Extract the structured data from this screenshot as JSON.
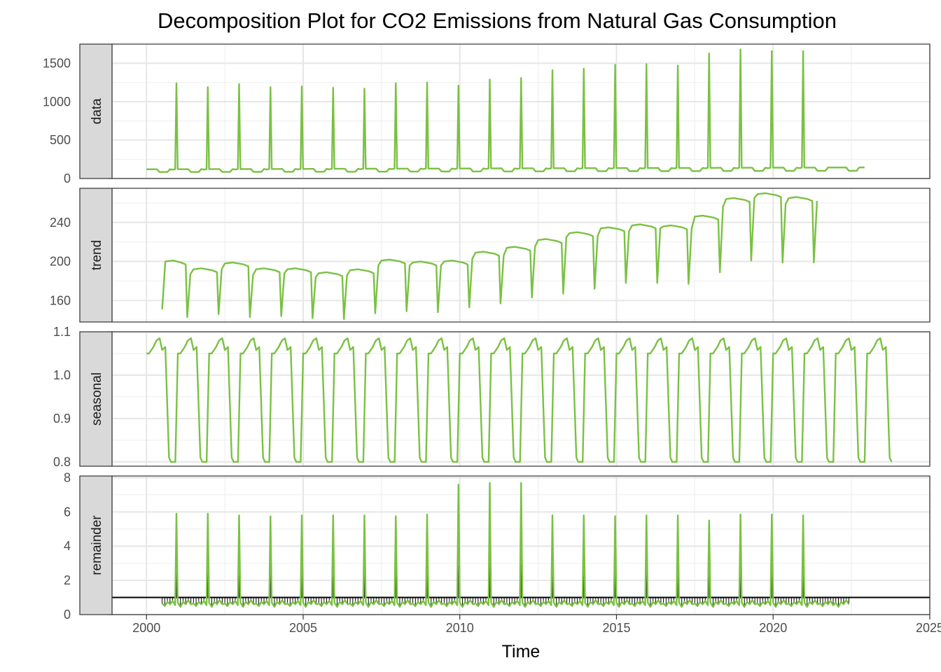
{
  "chart_data": {
    "type": "line",
    "title": "Decomposition Plot for CO2 Emissions from Natural Gas Consumption",
    "xlabel": "Time",
    "xlim": [
      1998.9,
      2025
    ],
    "x_ticks": [
      2000,
      2005,
      2010,
      2015,
      2020,
      2025
    ],
    "x_tick_labels": [
      "2000",
      "2005",
      "2010",
      "2015",
      "2020",
      "2025"
    ],
    "line_color": "#7ac143",
    "panels": [
      {
        "name": "data",
        "ylim": [
          0,
          1750
        ],
        "y_ticks": [
          0,
          500,
          1000,
          1500
        ],
        "y_tick_labels": [
          "0",
          "500",
          "1000",
          "1500"
        ],
        "start": 2000.0,
        "base_start": 120,
        "base_end": 145,
        "dip": 0.7,
        "peaks": [
          1240,
          1190,
          1230,
          1190,
          1200,
          1180,
          1170,
          1240,
          1250,
          1210,
          1290,
          1310,
          1410,
          1430,
          1480,
          1490,
          1470,
          1630,
          1680,
          1660,
          1660
        ]
      },
      {
        "name": "trend",
        "ylim": [
          138,
          275
        ],
        "y_ticks": [
          160,
          200,
          240
        ],
        "y_tick_labels": [
          "160",
          "200",
          "240"
        ],
        "start": 2000.5,
        "segments": [
          {
            "x0": 2000.5,
            "v0": 151,
            "level": 200,
            "end": 2001.3,
            "low": 143
          },
          {
            "x0": 2001.4,
            "v0": 187,
            "level": 192,
            "end": 2002.3,
            "low": 146
          },
          {
            "x0": 2002.4,
            "v0": 192,
            "level": 198,
            "end": 2003.3,
            "low": 143
          },
          {
            "x0": 2003.4,
            "v0": 186,
            "level": 192,
            "end": 2004.3,
            "low": 144
          },
          {
            "x0": 2004.4,
            "v0": 188,
            "level": 192,
            "end": 2005.3,
            "low": 142
          },
          {
            "x0": 2005.4,
            "v0": 184,
            "level": 188,
            "end": 2006.3,
            "low": 141
          },
          {
            "x0": 2006.4,
            "v0": 186,
            "level": 191,
            "end": 2007.3,
            "low": 147
          },
          {
            "x0": 2007.4,
            "v0": 196,
            "level": 201,
            "end": 2008.3,
            "low": 149
          },
          {
            "x0": 2008.4,
            "v0": 196,
            "level": 199,
            "end": 2009.3,
            "low": 148
          },
          {
            "x0": 2009.4,
            "v0": 196,
            "level": 200,
            "end": 2010.3,
            "low": 153
          },
          {
            "x0": 2010.4,
            "v0": 203,
            "level": 209,
            "end": 2011.3,
            "low": 157
          },
          {
            "x0": 2011.4,
            "v0": 206,
            "level": 214,
            "end": 2012.3,
            "low": 163
          },
          {
            "x0": 2012.4,
            "v0": 215,
            "level": 222,
            "end": 2013.3,
            "low": 167
          },
          {
            "x0": 2013.4,
            "v0": 225,
            "level": 229,
            "end": 2014.3,
            "low": 172
          },
          {
            "x0": 2014.4,
            "v0": 226,
            "level": 234,
            "end": 2015.3,
            "low": 178
          },
          {
            "x0": 2015.4,
            "v0": 231,
            "level": 237,
            "end": 2016.3,
            "low": 178
          },
          {
            "x0": 2016.4,
            "v0": 234,
            "level": 236,
            "end": 2017.3,
            "low": 177
          },
          {
            "x0": 2017.4,
            "v0": 234,
            "level": 246,
            "end": 2018.3,
            "low": 189
          },
          {
            "x0": 2018.4,
            "v0": 256,
            "level": 264,
            "end": 2019.3,
            "low": 201
          },
          {
            "x0": 2019.4,
            "v0": 265,
            "level": 269,
            "end": 2020.3,
            "low": 199
          },
          {
            "x0": 2020.4,
            "v0": 259,
            "level": 265,
            "end": 2021.3,
            "low": 199
          },
          {
            "x0": 2021.4,
            "v0": 262,
            "level": 262,
            "end": 2021.4,
            "low": 262
          }
        ]
      },
      {
        "name": "seasonal",
        "ylim": [
          0.79,
          1.1
        ],
        "y_ticks": [
          0.8,
          0.9,
          1.0,
          1.1
        ],
        "y_tick_labels": [
          "0.8",
          "0.9",
          "1.0",
          "1.1"
        ],
        "start": 2000.0,
        "cycle": [
          1.05,
          1.05,
          1.065,
          1.08,
          1.085,
          1.058,
          1.065,
          0.81,
          0.8,
          0.8
        ]
      },
      {
        "name": "remainder",
        "ylim": [
          0,
          8.1
        ],
        "y_ticks": [
          0,
          2,
          4,
          6,
          8
        ],
        "y_tick_labels": [
          "0",
          "2",
          "4",
          "6",
          "8"
        ],
        "baseline": 1.0,
        "start": 2000.5,
        "peaks": [
          5.9,
          5.9,
          5.8,
          5.75,
          5.8,
          5.8,
          5.8,
          5.75,
          5.85,
          7.6,
          7.7,
          7.7,
          5.8,
          5.8,
          5.75,
          5.8,
          5.8,
          5.5,
          5.85,
          5.85,
          5.8
        ],
        "low": 0.6
      }
    ]
  }
}
